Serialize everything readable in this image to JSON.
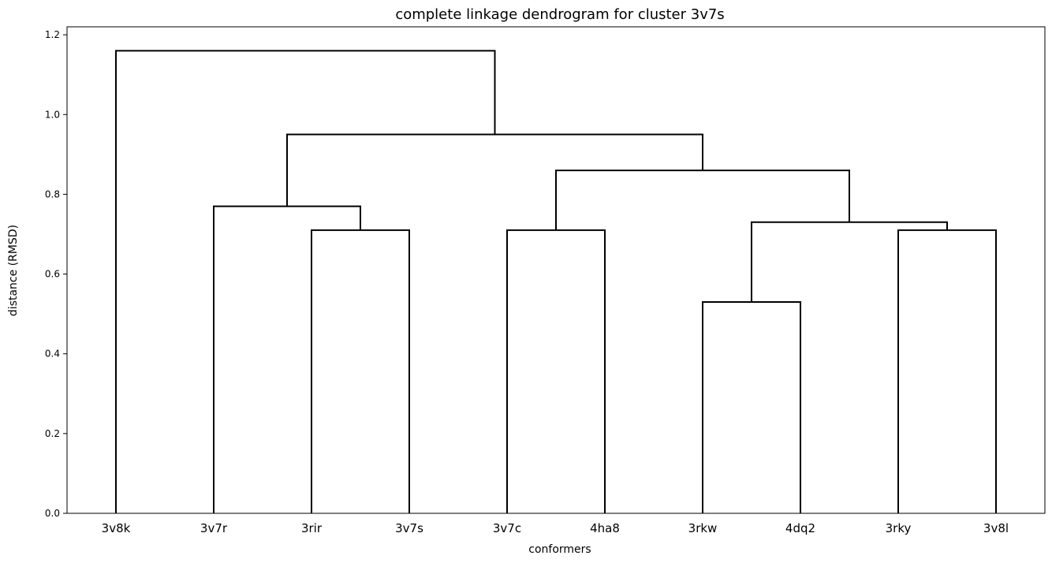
{
  "chart_data": {
    "type": "dendrogram",
    "title": "complete linkage dendrogram for cluster 3v7s",
    "xlabel": "conformers",
    "ylabel": "distance (RMSD)",
    "ylim": [
      0,
      1.22
    ],
    "yticks": [
      0.0,
      0.2,
      0.4,
      0.6,
      0.8,
      1.0,
      1.2
    ],
    "ytick_labels": [
      "0.0",
      "0.2",
      "0.4",
      "0.6",
      "0.8",
      "1.0",
      "1.2"
    ],
    "leaves": [
      "3v8k",
      "3v7r",
      "3rir",
      "3v7s",
      "3v7c",
      "4ha8",
      "3rkw",
      "4dq2",
      "3rky",
      "3v8l"
    ],
    "grid": false,
    "links": [
      {
        "name": "3rir-3v7s",
        "left": "3rir",
        "right": "3v7s",
        "height": 0.71
      },
      {
        "name": "3v7c-4ha8",
        "left": "3v7c",
        "right": "4ha8",
        "height": 0.71
      },
      {
        "name": "3rky-3v8l",
        "left": "3rky",
        "right": "3v8l",
        "height": 0.71
      },
      {
        "name": "3rkw-4dq2",
        "left": "3rkw",
        "right": "4dq2",
        "height": 0.53
      },
      {
        "name": "3v7r-3rir-3v7s",
        "left": "3v7r",
        "right": "3rir-3v7s",
        "height": 0.77
      },
      {
        "name": "3rkw-4dq2-3rky-3v8l",
        "left": "3rkw-4dq2",
        "right": "3rky-3v8l",
        "height": 0.73
      },
      {
        "name": "3v7c-4ha8-3rkw-4dq2-3rky-3v8l",
        "left": "3v7c-4ha8",
        "right": "3rkw-4dq2-3rky-3v8l",
        "height": 0.86
      },
      {
        "name": "inner-merge",
        "left": "3v7r-3rir-3v7s",
        "right": "3v7c-4ha8-3rkw-4dq2-3rky-3v8l",
        "height": 0.95
      },
      {
        "name": "root",
        "left": "3v8k",
        "right": "inner-merge",
        "height": 1.16
      }
    ]
  }
}
